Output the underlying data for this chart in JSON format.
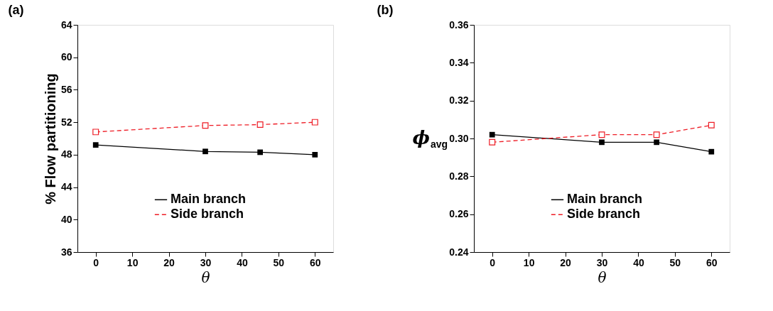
{
  "chart_data": [
    {
      "type": "line",
      "title": "(a)",
      "xlabel": "θ",
      "ylabel": "% Flow partitioning",
      "x": [
        0,
        30,
        45,
        60
      ],
      "xlim": [
        -5,
        65
      ],
      "xticks": [
        0,
        10,
        20,
        30,
        40,
        50,
        60
      ],
      "ylim": [
        36,
        64
      ],
      "yticks": [
        36,
        40,
        44,
        48,
        52,
        56,
        60,
        64
      ],
      "legend": "bottom",
      "grid": false,
      "series": [
        {
          "name": "Main branch",
          "color": "#000000",
          "values": [
            49.2,
            48.4,
            48.3,
            48.0
          ],
          "marker": "square",
          "line_style": "solid"
        },
        {
          "name": "Side branch",
          "color": "#ee1c25",
          "values": [
            50.8,
            51.6,
            51.7,
            52.0
          ],
          "marker": "square",
          "line_style": "dashed"
        }
      ]
    },
    {
      "type": "line",
      "title": "(b)",
      "xlabel": "θ",
      "ylabel": "ϕ$_{avg}$",
      "x": [
        0,
        30,
        45,
        60
      ],
      "xlim": [
        -5,
        65
      ],
      "xticks": [
        0,
        10,
        20,
        30,
        40,
        50,
        60
      ],
      "ylim": [
        0.24,
        0.36
      ],
      "yticks": [
        {
          "value": 0.24,
          "label": "0.24"
        },
        {
          "value": 0.26,
          "label": "0.26"
        },
        {
          "value": 0.28,
          "label": "0.28"
        },
        {
          "value": 0.3,
          "label": "0.30"
        },
        {
          "value": 0.32,
          "label": "0.32"
        },
        {
          "value": 0.34,
          "label": "0.34"
        },
        {
          "value": 0.36,
          "label": "0.36"
        }
      ],
      "legend": "bottom",
      "grid": false,
      "series": [
        {
          "name": "Main branch",
          "color": "#000000",
          "values": [
            0.302,
            0.298,
            0.298,
            0.293
          ],
          "marker": "square",
          "line_style": "solid"
        },
        {
          "name": "Side branch",
          "color": "#ee1c25",
          "values": [
            0.298,
            0.302,
            0.302,
            0.307
          ],
          "marker": "square",
          "line_style": "dashed"
        }
      ]
    }
  ]
}
